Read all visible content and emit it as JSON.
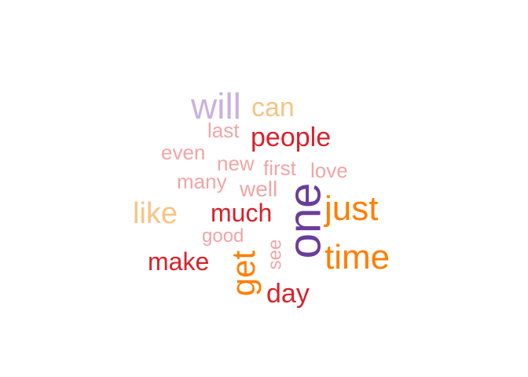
{
  "words": [
    {
      "key": "will",
      "text": "will",
      "color": "#cbb1de"
    },
    {
      "key": "can",
      "text": "can",
      "color": "#f8c384"
    },
    {
      "key": "last",
      "text": "last",
      "color": "#f2a5a5"
    },
    {
      "key": "people",
      "text": "people",
      "color": "#d9212b"
    },
    {
      "key": "even",
      "text": "even",
      "color": "#f2a5a5"
    },
    {
      "key": "new",
      "text": "new",
      "color": "#f2a5a5"
    },
    {
      "key": "first",
      "text": "first",
      "color": "#f2a5a5"
    },
    {
      "key": "love",
      "text": "love",
      "color": "#f2a5a5"
    },
    {
      "key": "many",
      "text": "many",
      "color": "#f2a5a5"
    },
    {
      "key": "well",
      "text": "well",
      "color": "#f2a5a5"
    },
    {
      "key": "one",
      "text": "one",
      "color": "#6a3d9a"
    },
    {
      "key": "just",
      "text": "just",
      "color": "#ff7f00"
    },
    {
      "key": "like",
      "text": "like",
      "color": "#f8c384"
    },
    {
      "key": "much",
      "text": "much",
      "color": "#d9212b"
    },
    {
      "key": "good",
      "text": "good",
      "color": "#f2a5a5"
    },
    {
      "key": "see",
      "text": "see",
      "color": "#f2a5a5"
    },
    {
      "key": "make",
      "text": "make",
      "color": "#d9212b"
    },
    {
      "key": "time",
      "text": "time",
      "color": "#ff7f00"
    },
    {
      "key": "get",
      "text": "get",
      "color": "#ff7f00"
    },
    {
      "key": "day",
      "text": "day",
      "color": "#d9212b"
    }
  ]
}
